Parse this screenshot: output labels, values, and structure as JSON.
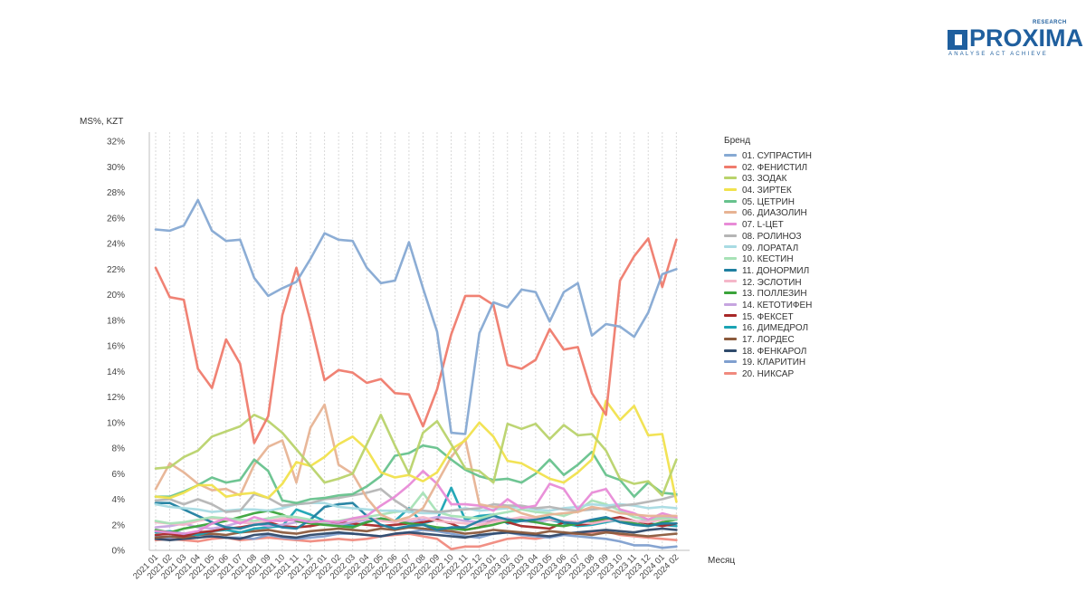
{
  "logo": {
    "brand": "PROXIMA",
    "research": "RESEARCH",
    "tagline": "ANALYSE ACT ACHIEVE"
  },
  "chart_data": {
    "type": "line",
    "ylabel": "MS%, KZT",
    "xlabel": "Месяц",
    "legend_title": "Бренд",
    "legend_position": "right",
    "grid": "vertical dashed",
    "ylim": [
      0,
      32
    ],
    "yticks": [
      "0%",
      "2%",
      "4%",
      "6%",
      "8%",
      "10%",
      "12%",
      "14%",
      "16%",
      "18%",
      "20%",
      "22%",
      "24%",
      "26%",
      "28%",
      "30%",
      "32%"
    ],
    "categories": [
      "2021 01",
      "2021 02",
      "2021 03",
      "2021 04",
      "2021 05",
      "2021 06",
      "2021 07",
      "2021 08",
      "2021 09",
      "2021 10",
      "2021 11",
      "2021 12",
      "2022 01",
      "2022 02",
      "2022 03",
      "2022 04",
      "2022 05",
      "2022 06",
      "2022 07",
      "2022 08",
      "2022 09",
      "2022 10",
      "2022 11",
      "2022 12",
      "2023 01",
      "2023 02",
      "2023 03",
      "2023 04",
      "2023 05",
      "2023 06",
      "2023 07",
      "2023 08",
      "2023 09",
      "2023 10",
      "2023 11",
      "2023 12",
      "2024 01",
      "2024 02"
    ],
    "series": [
      {
        "name": "01. СУПРАСТИН",
        "color": "#86a9d3",
        "values": [
          25.1,
          25,
          25.4,
          27.4,
          25,
          24.2,
          24.3,
          21.3,
          19.9,
          20.5,
          21,
          22.8,
          24.8,
          24.3,
          24.2,
          22.1,
          20.9,
          21.1,
          24.1,
          20.5,
          17.1,
          9.2,
          9.1,
          17,
          19.4,
          19,
          20.4,
          20.2,
          17.9,
          20.2,
          20.9,
          16.8,
          17.7,
          17.5,
          16.7,
          18.6,
          21.6,
          22
        ]
      },
      {
        "name": "02. ФЕНИСТИЛ",
        "color": "#ef7b6d",
        "values": [
          22.1,
          19.8,
          19.6,
          14.2,
          12.7,
          16.5,
          14.6,
          8.4,
          10.5,
          18.4,
          22.1,
          17.9,
          13.3,
          14.1,
          13.9,
          13.1,
          13.4,
          12.3,
          12.2,
          9.7,
          12.6,
          16.9,
          19.9,
          19.9,
          19.2,
          14.5,
          14.2,
          14.9,
          17.3,
          15.7,
          15.9,
          12.3,
          10.6,
          21.1,
          23,
          24.4,
          20.6,
          24.3
        ]
      },
      {
        "name": "03. ЗОДАК",
        "color": "#b9d36b",
        "values": [
          6.4,
          6.5,
          7.3,
          7.8,
          8.9,
          9.3,
          9.7,
          10.6,
          10.1,
          9.2,
          7.9,
          6.6,
          5.3,
          5.6,
          6,
          8.3,
          10.6,
          8.2,
          6,
          9.2,
          10.1,
          8.3,
          6.4,
          6.2,
          5.3,
          9.9,
          9.5,
          9.9,
          8.7,
          9.8,
          9,
          9.1,
          7.8,
          5.6,
          5.2,
          5.4,
          4.3,
          7.1
        ]
      },
      {
        "name": "04. ЗИРТЕК",
        "color": "#f1e24d",
        "values": [
          4.2,
          4.1,
          4.5,
          5.1,
          5.1,
          4.2,
          4.4,
          4.5,
          4.1,
          5.2,
          6.9,
          6.6,
          7.3,
          8.3,
          8.9,
          7.9,
          6.1,
          5.7,
          5.9,
          5.4,
          6.1,
          7.9,
          8.6,
          10,
          8.9,
          7,
          6.8,
          6.2,
          5.6,
          5.3,
          6.1,
          7.1,
          11.7,
          10.2,
          11.3,
          9,
          9.1,
          3.8
        ]
      },
      {
        "name": "05. ЦЕТРИН",
        "color": "#67c28d",
        "values": [
          4.2,
          4.2,
          4.6,
          5.1,
          5.7,
          5.3,
          5.5,
          7.1,
          6.2,
          3.9,
          3.7,
          4,
          4.1,
          4.3,
          4.4,
          5,
          5.8,
          7.4,
          7.6,
          8.2,
          8,
          7.1,
          6.3,
          5.8,
          5.5,
          5.6,
          5.3,
          6,
          7.1,
          5.9,
          6.7,
          7.7,
          5.9,
          5.5,
          4.2,
          5.3,
          4.5,
          4.4
        ]
      },
      {
        "name": "06. ДИАЗОЛИН",
        "color": "#e7b393",
        "values": [
          4.8,
          6.8,
          6.1,
          5.2,
          4.7,
          4.8,
          4.3,
          6.7,
          8.1,
          8.6,
          5.3,
          9.6,
          11.4,
          6.7,
          6,
          4.1,
          2.8,
          2.3,
          2.6,
          3.3,
          5.3,
          7.3,
          8.7,
          3.6,
          3.4,
          3.4,
          2.9,
          2.6,
          2.8,
          2.9,
          3,
          3.4,
          3.2,
          2.9,
          2.8,
          2.7,
          2.7,
          2.7
        ]
      },
      {
        "name": "07. L-ЦЕТ",
        "color": "#e88bd7",
        "values": [
          1.5,
          1.4,
          1.3,
          1.5,
          2.1,
          2.5,
          2.1,
          2.6,
          2.3,
          2.3,
          2.4,
          2.2,
          2.3,
          2.2,
          2.5,
          2.7,
          3.5,
          4.2,
          5.1,
          6.2,
          5.2,
          3.6,
          3.6,
          3.5,
          3.1,
          4,
          3.3,
          3.5,
          5.2,
          4.8,
          3.2,
          4.5,
          4.8,
          3.2,
          2.9,
          2.4,
          2.9,
          2.6
        ]
      },
      {
        "name": "08. РОЛИНОЗ",
        "color": "#b5b5b5",
        "values": [
          3.9,
          4,
          3.6,
          4,
          3.6,
          3,
          3.1,
          4.4,
          4.1,
          3.5,
          3.6,
          3.7,
          4,
          4.1,
          4.3,
          4.5,
          4.8,
          3.9,
          3.2,
          3.1,
          3,
          3.1,
          3.2,
          3.3,
          3.6,
          3.5,
          3.5,
          3.3,
          3.4,
          3.2,
          3.1,
          3.2,
          3.3,
          3.5,
          3.6,
          3.8,
          4,
          4.3
        ]
      },
      {
        "name": "09. ЛОРАТАЛ",
        "color": "#a8dbe3",
        "values": [
          3.6,
          3.4,
          3.3,
          3.2,
          3,
          3.1,
          3.2,
          3.2,
          3.1,
          3.3,
          3.6,
          3.7,
          3.7,
          3.4,
          3.3,
          3.2,
          3.1,
          3.1,
          3,
          2.9,
          2.9,
          3.1,
          3.3,
          3.1,
          3.2,
          3.3,
          3.4,
          3.2,
          3.1,
          3.3,
          3.4,
          3.6,
          3.5,
          3.6,
          3.5,
          3.3,
          3.4,
          3.3
        ]
      },
      {
        "name": "10. КЕСТИН",
        "color": "#a7e2b6",
        "values": [
          2.3,
          2.1,
          2.2,
          2.4,
          2.6,
          2.5,
          2.4,
          2.3,
          2.5,
          2.7,
          2.6,
          2.4,
          2.2,
          2.3,
          2.5,
          2.6,
          2.8,
          3,
          3.1,
          4.5,
          3,
          2.7,
          2.6,
          2.5,
          2.8,
          3,
          3.2,
          3,
          2.9,
          2.7,
          3.1,
          3.9,
          3.6,
          3.1,
          2.6,
          2.4,
          2.5,
          2.4
        ]
      },
      {
        "name": "11. ДОНОРМИЛ",
        "color": "#1f7fa0",
        "values": [
          3.7,
          3.7,
          3.2,
          2.7,
          2.2,
          1.8,
          1.7,
          2,
          2.1,
          1.8,
          1.7,
          2.4,
          3.4,
          3.6,
          3.7,
          2.7,
          2,
          1.7,
          1.9,
          2,
          1.6,
          1.8,
          1.8,
          2.3,
          2.7,
          2.4,
          2.3,
          2.4,
          2.6,
          2.2,
          2.1,
          2.4,
          2.6,
          2.2,
          2,
          1.9,
          2.1,
          2.1
        ]
      },
      {
        "name": "12. ЭСЛОТИН",
        "color": "#f5b7c9",
        "values": [
          2.2,
          2.1,
          2,
          2.3,
          2.5,
          2.4,
          2.2,
          2.1,
          2.3,
          2.5,
          2.4,
          2.3,
          2.2,
          2.3,
          2.4,
          2.5,
          2.3,
          2.2,
          2.4,
          2.6,
          2.3,
          2.2,
          2.1,
          2,
          2.2,
          2.4,
          2.6,
          2.5,
          2.4,
          2.3,
          2.2,
          2.1,
          2.3,
          2.4,
          2.3,
          2.2,
          2.4,
          2.5
        ]
      },
      {
        "name": "13. ПОЛЛЕЗИН",
        "color": "#3aa33a",
        "values": [
          1.6,
          1.4,
          1.7,
          1.9,
          2.1,
          2.3,
          2.6,
          2.9,
          3.1,
          2.8,
          2.3,
          2.1,
          2,
          1.9,
          1.8,
          2.2,
          2.5,
          2.3,
          2.1,
          2,
          1.8,
          1.7,
          1.6,
          1.8,
          2,
          2.3,
          2.4,
          2.2,
          2,
          1.9,
          2.1,
          2.3,
          2.5,
          2.3,
          2.1,
          1.9,
          2.2,
          2.4
        ]
      },
      {
        "name": "14. КЕТОТИФЕН",
        "color": "#c6a5e0",
        "values": [
          1.8,
          1.9,
          2.1,
          1.8,
          1.7,
          1.9,
          2.2,
          2.1,
          1.9,
          2,
          2.2,
          2.3,
          2.1,
          2,
          2.2,
          2.4,
          2.5,
          2.3,
          2.2,
          2.4,
          2.6,
          2.5,
          2.3,
          2.2,
          2.4,
          2.5,
          2.3,
          2.2,
          2.4,
          2.3,
          2.2,
          2.4,
          2.5,
          2.3,
          2.2,
          2.4,
          2.6,
          2.5
        ]
      },
      {
        "name": "15. ФЕКСЕТ",
        "color": "#a82828",
        "values": [
          1.2,
          1.3,
          1.1,
          1.4,
          1.5,
          1.7,
          1.8,
          2,
          2.2,
          1.9,
          1.8,
          1.9,
          2.1,
          2.2,
          2.1,
          2,
          1.9,
          2,
          2.1,
          2.2,
          2.4,
          2.1,
          1.6,
          1.8,
          2.4,
          2.2,
          1.9,
          1.8,
          1.7,
          2.2,
          2,
          2.1,
          2.4,
          2.6,
          2.3,
          2.1,
          1.9,
          2.1
        ]
      },
      {
        "name": "16. ДИМЕДРОЛ",
        "color": "#1aa3b3",
        "values": [
          1.4,
          1.5,
          1.3,
          1.2,
          1.5,
          1.6,
          1.4,
          1.7,
          1.8,
          1.9,
          3.2,
          2.8,
          2.3,
          2.1,
          1.9,
          2.2,
          2.5,
          2.3,
          3.3,
          2.1,
          2.4,
          4.9,
          2.4,
          2.7,
          2.8,
          2.1,
          2.3,
          2.2,
          2.4,
          2.1,
          1.9,
          2,
          2.2,
          2.4,
          2.3,
          2.1,
          2,
          1.9
        ]
      },
      {
        "name": "17. ЛОРДЕС",
        "color": "#8b5a3c",
        "values": [
          1,
          1.1,
          1,
          1.2,
          1.3,
          1.2,
          1.4,
          1.5,
          1.6,
          1.4,
          1.3,
          1.5,
          1.6,
          1.7,
          1.6,
          1.5,
          1.7,
          1.6,
          1.8,
          1.7,
          1.6,
          1.5,
          1.3,
          1.4,
          1.6,
          1.5,
          1.4,
          1.3,
          1.5,
          1.4,
          1.3,
          1.2,
          1.4,
          1.3,
          1.2,
          1.1,
          1.2,
          1.3
        ]
      },
      {
        "name": "18. ФЕНКАРОЛ",
        "color": "#2f4a6b",
        "values": [
          0.9,
          0.8,
          0.9,
          1,
          1.1,
          1,
          0.9,
          1.2,
          1.3,
          1.1,
          1,
          1.2,
          1.3,
          1.4,
          1.3,
          1.2,
          1.1,
          1.3,
          1.4,
          1.3,
          1.2,
          1.1,
          1,
          1.2,
          1.3,
          1.4,
          1.3,
          1.2,
          1.1,
          1.3,
          1.4,
          1.5,
          1.6,
          1.5,
          1.4,
          1.6,
          1.7,
          1.6
        ]
      },
      {
        "name": "19. КЛАРИТИН",
        "color": "#7f9fcf",
        "values": [
          1.1,
          1,
          1.2,
          1.3,
          1.1,
          1,
          1,
          0.9,
          1.2,
          1,
          0.9,
          1,
          1.1,
          1.3,
          1.3,
          1.2,
          1.1,
          1.3,
          1.4,
          1.6,
          1.5,
          1.3,
          1.1,
          1,
          1.3,
          1.4,
          1.2,
          1.1,
          1,
          1.2,
          1.1,
          1,
          0.9,
          0.7,
          0.4,
          0.4,
          0.2,
          0.3
        ]
      },
      {
        "name": "20. НИКСАР",
        "color": "#f08a7e",
        "values": [
          0.8,
          0.9,
          0.8,
          0.7,
          0.9,
          1,
          0.8,
          0.9,
          1,
          0.9,
          0.8,
          0.7,
          0.8,
          0.9,
          0.8,
          0.9,
          1.1,
          1.2,
          1.3,
          1.1,
          0.9,
          0.1,
          0.3,
          0.3,
          0.6,
          0.9,
          1,
          0.9,
          1.1,
          1.2,
          1.3,
          1.4,
          1.5,
          1.2,
          1.1,
          1,
          0.9,
          0.8
        ]
      }
    ]
  }
}
